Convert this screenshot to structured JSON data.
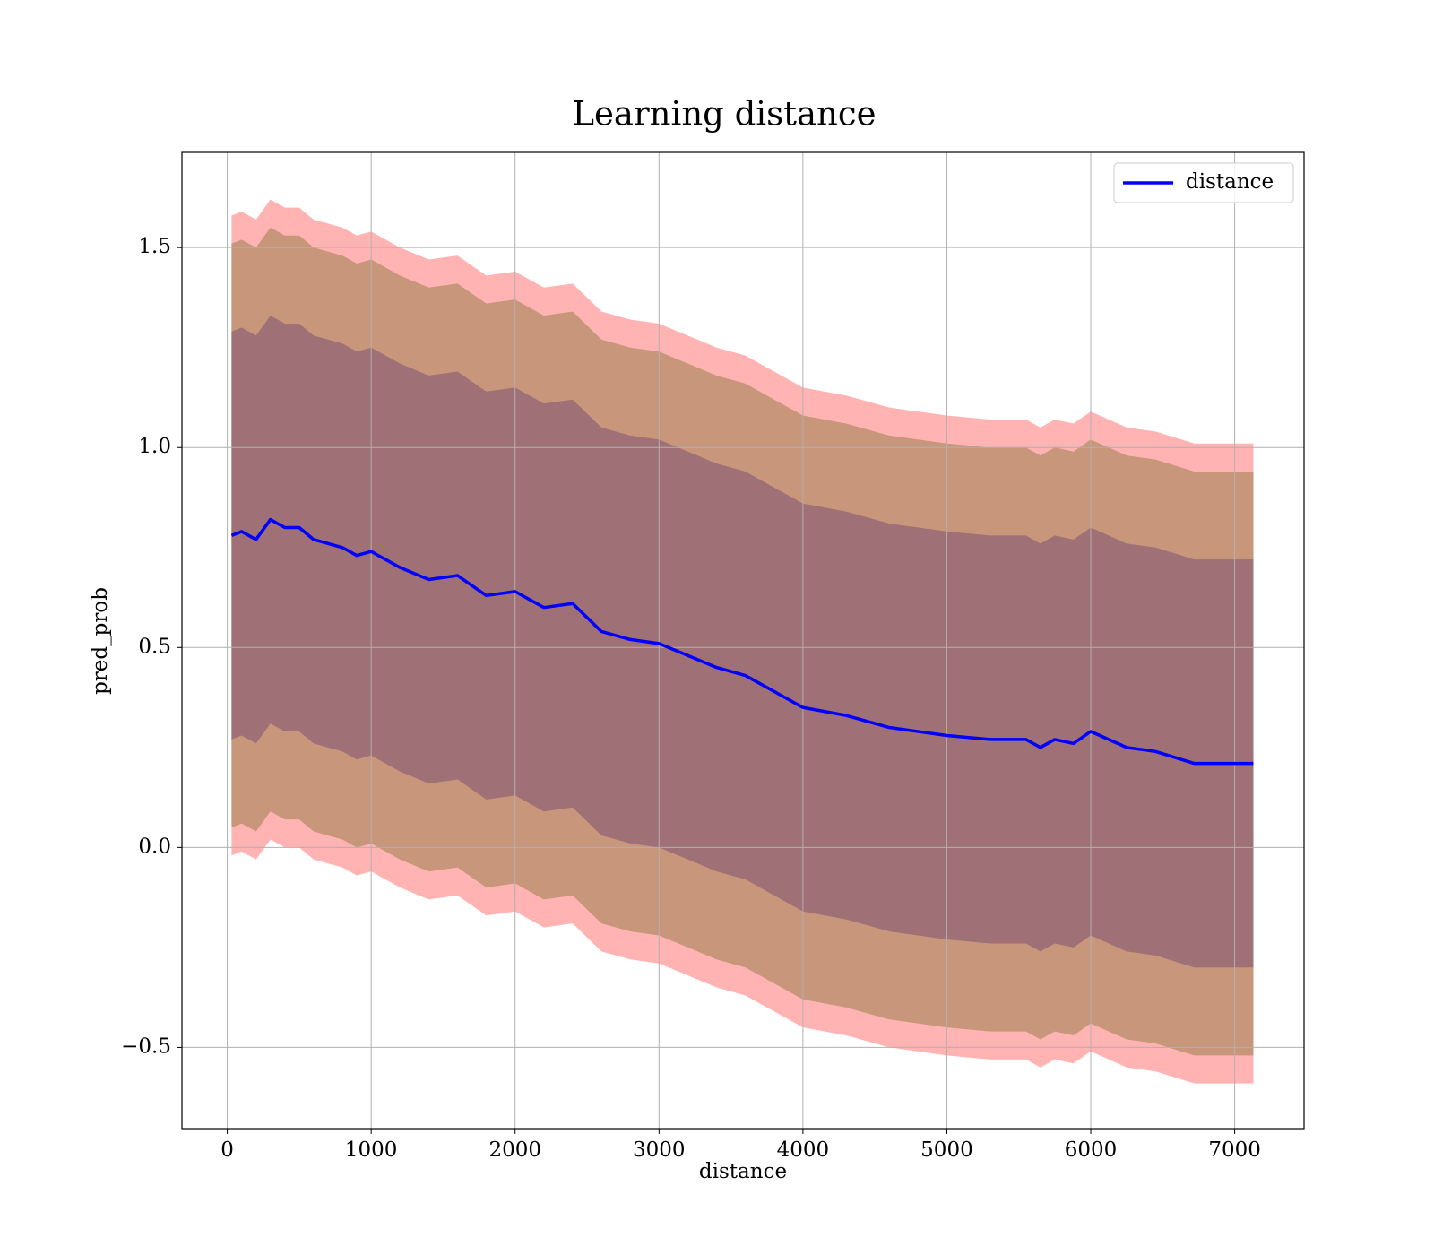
{
  "chart_data": {
    "type": "line",
    "title": "Learning distance",
    "x_label": "distance",
    "y_label": "pred_prob",
    "x": [
      30,
      100,
      200,
      300,
      400,
      500,
      600,
      700,
      800,
      900,
      1000,
      1200,
      1400,
      1600,
      1800,
      2000,
      2200,
      2400,
      2600,
      2800,
      3000,
      3200,
      3400,
      3600,
      3800,
      4000,
      4300,
      4600,
      5000,
      5300,
      5550,
      5650,
      5750,
      5880,
      6000,
      6250,
      6450,
      6720,
      7130
    ],
    "series": [
      {
        "name": "distance",
        "color": "#0000ff",
        "values": [
          0.78,
          0.79,
          0.77,
          0.82,
          0.8,
          0.8,
          0.77,
          0.76,
          0.75,
          0.73,
          0.74,
          0.7,
          0.67,
          0.68,
          0.63,
          0.64,
          0.6,
          0.61,
          0.54,
          0.52,
          0.51,
          0.48,
          0.45,
          0.43,
          0.39,
          0.35,
          0.33,
          0.3,
          0.28,
          0.27,
          0.27,
          0.25,
          0.27,
          0.26,
          0.29,
          0.25,
          0.24,
          0.21,
          0.21
        ]
      }
    ],
    "bands": [
      {
        "color": "#ffb3b3",
        "upper": [
          1.58,
          1.59,
          1.57,
          1.62,
          1.6,
          1.6,
          1.57,
          1.56,
          1.55,
          1.53,
          1.54,
          1.5,
          1.47,
          1.48,
          1.43,
          1.44,
          1.4,
          1.41,
          1.34,
          1.32,
          1.31,
          1.28,
          1.25,
          1.23,
          1.19,
          1.15,
          1.13,
          1.1,
          1.08,
          1.07,
          1.07,
          1.05,
          1.07,
          1.06,
          1.09,
          1.05,
          1.04,
          1.01,
          1.01
        ],
        "lower": [
          -0.02,
          -0.01,
          -0.03,
          0.02,
          0.0,
          0.0,
          -0.03,
          -0.04,
          -0.05,
          -0.07,
          -0.06,
          -0.1,
          -0.13,
          -0.12,
          -0.17,
          -0.16,
          -0.2,
          -0.19,
          -0.26,
          -0.28,
          -0.29,
          -0.32,
          -0.35,
          -0.37,
          -0.41,
          -0.45,
          -0.47,
          -0.5,
          -0.52,
          -0.53,
          -0.53,
          -0.55,
          -0.53,
          -0.54,
          -0.51,
          -0.55,
          -0.56,
          -0.59,
          -0.59
        ]
      },
      {
        "color": "#c8967a",
        "upper": [
          1.51,
          1.52,
          1.5,
          1.55,
          1.53,
          1.53,
          1.5,
          1.49,
          1.48,
          1.46,
          1.47,
          1.43,
          1.4,
          1.41,
          1.36,
          1.37,
          1.33,
          1.34,
          1.27,
          1.25,
          1.24,
          1.21,
          1.18,
          1.16,
          1.12,
          1.08,
          1.06,
          1.03,
          1.01,
          1.0,
          1.0,
          0.98,
          1.0,
          0.99,
          1.02,
          0.98,
          0.97,
          0.94,
          0.94
        ],
        "lower": [
          0.05,
          0.06,
          0.04,
          0.09,
          0.07,
          0.07,
          0.04,
          0.03,
          0.02,
          0.0,
          0.01,
          -0.03,
          -0.06,
          -0.05,
          -0.1,
          -0.09,
          -0.13,
          -0.12,
          -0.19,
          -0.21,
          -0.22,
          -0.25,
          -0.28,
          -0.3,
          -0.34,
          -0.38,
          -0.4,
          -0.43,
          -0.45,
          -0.46,
          -0.46,
          -0.48,
          -0.46,
          -0.47,
          -0.44,
          -0.48,
          -0.49,
          -0.52,
          -0.52
        ]
      },
      {
        "color": "#a07077",
        "upper": [
          1.29,
          1.3,
          1.28,
          1.33,
          1.31,
          1.31,
          1.28,
          1.27,
          1.26,
          1.24,
          1.25,
          1.21,
          1.18,
          1.19,
          1.14,
          1.15,
          1.11,
          1.12,
          1.05,
          1.03,
          1.02,
          0.99,
          0.96,
          0.94,
          0.9,
          0.86,
          0.84,
          0.81,
          0.79,
          0.78,
          0.78,
          0.76,
          0.78,
          0.77,
          0.8,
          0.76,
          0.75,
          0.72,
          0.72
        ],
        "lower": [
          0.27,
          0.28,
          0.26,
          0.31,
          0.29,
          0.29,
          0.26,
          0.25,
          0.24,
          0.22,
          0.23,
          0.19,
          0.16,
          0.17,
          0.12,
          0.13,
          0.09,
          0.1,
          0.03,
          0.01,
          0.0,
          -0.03,
          -0.06,
          -0.08,
          -0.12,
          -0.16,
          -0.18,
          -0.21,
          -0.23,
          -0.24,
          -0.24,
          -0.26,
          -0.24,
          -0.25,
          -0.22,
          -0.26,
          -0.27,
          -0.3,
          -0.3
        ]
      }
    ],
    "xlim": [
      -315,
      7482
    ],
    "ylim": [
      -0.703,
      1.738
    ],
    "xticks": [
      0,
      1000,
      2000,
      3000,
      4000,
      5000,
      6000,
      7000
    ],
    "yticks": [
      {
        "value": -0.5,
        "label": "−0.5"
      },
      {
        "value": 0,
        "label": "0.0"
      },
      0.5,
      {
        "value": 1,
        "label": "1.0"
      },
      1.5
    ],
    "grid": true,
    "legend": "upper right"
  }
}
